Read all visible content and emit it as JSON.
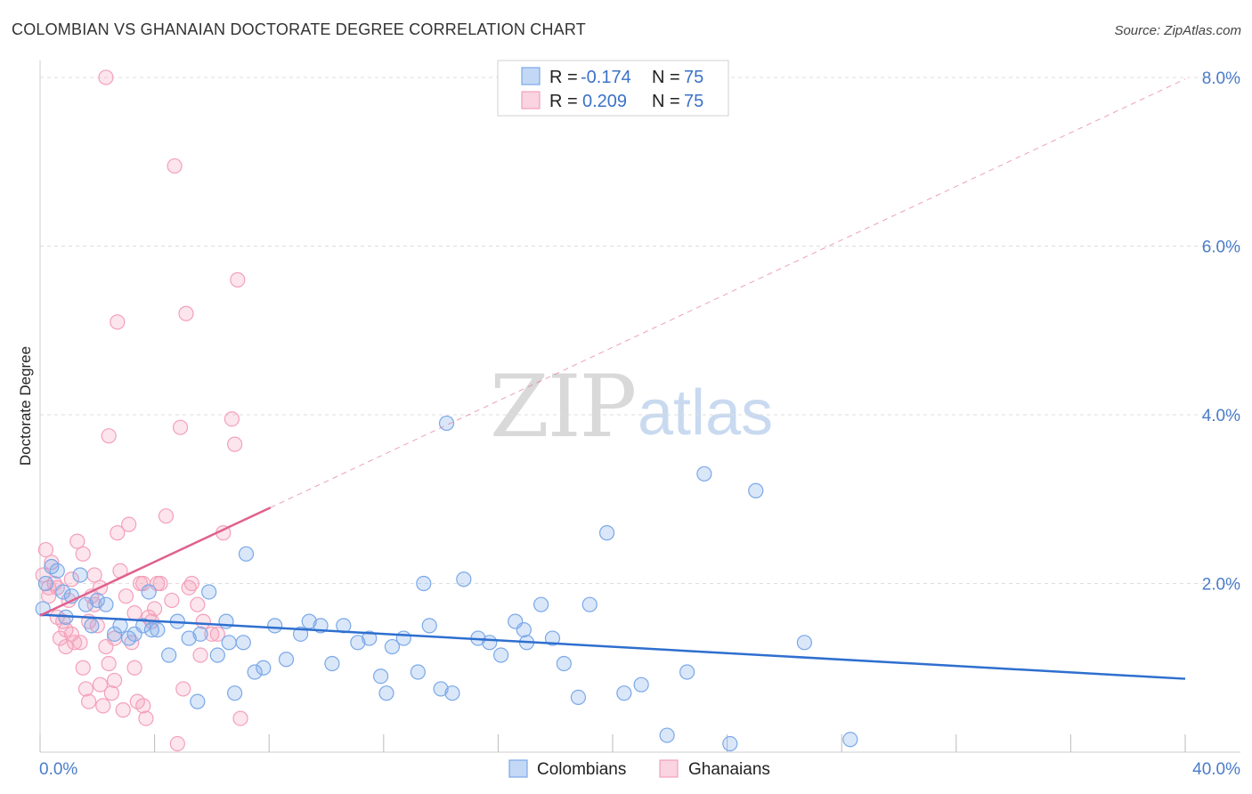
{
  "chart_data": {
    "type": "scatter",
    "title": "COLOMBIAN VS GHANAIAN DOCTORATE DEGREE CORRELATION CHART",
    "source": "Source: ZipAtlas.com",
    "ylabel": "Doctorate Degree",
    "xlabel": "",
    "xlim": [
      0,
      40
    ],
    "ylim": [
      0,
      8.2
    ],
    "x_tick_labels": [
      "0.0%",
      "40.0%"
    ],
    "y_ticks": [
      2,
      4,
      6,
      8
    ],
    "y_tick_labels": [
      "2.0%",
      "4.0%",
      "6.0%",
      "8.0%"
    ],
    "watermark": {
      "zip": "ZIP",
      "atlas": "atlas"
    },
    "legend": {
      "rows": [
        {
          "r_label": "R =",
          "r_value": "-0.174",
          "n_label": "N =",
          "n_value": "75"
        },
        {
          "r_label": "R =",
          "r_value": "0.209",
          "n_label": "N =",
          "n_value": "75"
        }
      ]
    },
    "series": [
      {
        "name": "Colombians",
        "color": "#7aa8e8",
        "line_color": "#2e6fcf",
        "trend": {
          "x": [
            0,
            40
          ],
          "y": [
            1.63,
            0.87
          ]
        },
        "points": [
          [
            0.1,
            1.7
          ],
          [
            0.2,
            2.0
          ],
          [
            0.4,
            2.2
          ],
          [
            0.6,
            2.15
          ],
          [
            0.8,
            1.9
          ],
          [
            1.1,
            1.85
          ],
          [
            1.4,
            2.1
          ],
          [
            1.8,
            1.5
          ],
          [
            2.3,
            1.75
          ],
          [
            2.6,
            1.4
          ],
          [
            2.8,
            1.5
          ],
          [
            3.1,
            1.35
          ],
          [
            3.3,
            1.4
          ],
          [
            3.6,
            1.5
          ],
          [
            3.8,
            1.9
          ],
          [
            4.1,
            1.45
          ],
          [
            4.5,
            1.15
          ],
          [
            4.8,
            1.55
          ],
          [
            5.2,
            1.35
          ],
          [
            5.6,
            1.4
          ],
          [
            5.9,
            1.9
          ],
          [
            6.2,
            1.15
          ],
          [
            6.5,
            1.55
          ],
          [
            6.8,
            0.7
          ],
          [
            7.1,
            1.3
          ],
          [
            7.5,
            0.95
          ],
          [
            7.8,
            1.0
          ],
          [
            8.2,
            1.5
          ],
          [
            8.6,
            1.1
          ],
          [
            9.1,
            1.4
          ],
          [
            9.4,
            1.55
          ],
          [
            9.8,
            1.5
          ],
          [
            10.2,
            1.05
          ],
          [
            10.6,
            1.5
          ],
          [
            11.1,
            1.3
          ],
          [
            11.5,
            1.35
          ],
          [
            11.9,
            0.9
          ],
          [
            12.3,
            1.25
          ],
          [
            12.7,
            1.35
          ],
          [
            13.2,
            0.95
          ],
          [
            13.6,
            1.5
          ],
          [
            14.0,
            0.75
          ],
          [
            14.4,
            0.7
          ],
          [
            14.8,
            2.05
          ],
          [
            15.3,
            1.35
          ],
          [
            15.7,
            1.3
          ],
          [
            16.1,
            1.15
          ],
          [
            16.6,
            1.55
          ],
          [
            17.0,
            1.3
          ],
          [
            17.5,
            1.75
          ],
          [
            17.9,
            1.35
          ],
          [
            18.3,
            1.05
          ],
          [
            18.8,
            0.65
          ],
          [
            19.2,
            1.75
          ],
          [
            19.8,
            2.6
          ],
          [
            20.4,
            0.7
          ],
          [
            21.0,
            0.8
          ],
          [
            21.9,
            0.2
          ],
          [
            22.6,
            0.95
          ],
          [
            23.2,
            3.3
          ],
          [
            24.1,
            0.1
          ],
          [
            25.0,
            3.1
          ],
          [
            26.7,
            1.3
          ],
          [
            28.3,
            0.15
          ],
          [
            13.4,
            2.0
          ],
          [
            12.1,
            0.7
          ],
          [
            5.5,
            0.6
          ],
          [
            6.6,
            1.3
          ],
          [
            2.0,
            1.8
          ],
          [
            0.9,
            1.6
          ],
          [
            1.6,
            1.75
          ],
          [
            3.9,
            1.45
          ],
          [
            7.2,
            2.35
          ],
          [
            14.2,
            3.9
          ],
          [
            16.9,
            1.45
          ]
        ]
      },
      {
        "name": "Ghanaians",
        "color": "#f4a0bb",
        "line_color": "#e0608e",
        "trend": {
          "x": [
            0,
            8.05
          ],
          "y": [
            1.62,
            2.9
          ]
        },
        "points": [
          [
            0.1,
            2.1
          ],
          [
            0.2,
            2.4
          ],
          [
            0.3,
            1.95
          ],
          [
            0.4,
            2.25
          ],
          [
            0.5,
            2.0
          ],
          [
            0.6,
            1.6
          ],
          [
            0.7,
            1.35
          ],
          [
            0.8,
            1.55
          ],
          [
            0.9,
            1.25
          ],
          [
            1.0,
            1.8
          ],
          [
            1.1,
            1.4
          ],
          [
            1.2,
            1.3
          ],
          [
            1.3,
            2.5
          ],
          [
            1.4,
            1.3
          ],
          [
            1.5,
            1.0
          ],
          [
            1.6,
            0.75
          ],
          [
            1.7,
            0.6
          ],
          [
            1.8,
            1.85
          ],
          [
            1.9,
            1.75
          ],
          [
            2.0,
            1.5
          ],
          [
            2.1,
            0.8
          ],
          [
            2.2,
            0.55
          ],
          [
            2.3,
            1.25
          ],
          [
            2.4,
            1.05
          ],
          [
            2.5,
            0.7
          ],
          [
            2.6,
            0.85
          ],
          [
            2.7,
            2.6
          ],
          [
            2.8,
            2.15
          ],
          [
            2.9,
            0.5
          ],
          [
            3.0,
            1.85
          ],
          [
            3.1,
            2.7
          ],
          [
            3.2,
            1.3
          ],
          [
            3.3,
            1.0
          ],
          [
            3.4,
            0.6
          ],
          [
            3.5,
            2.0
          ],
          [
            3.6,
            2.0
          ],
          [
            3.7,
            0.4
          ],
          [
            3.8,
            1.6
          ],
          [
            3.9,
            1.55
          ],
          [
            4.0,
            1.7
          ],
          [
            4.2,
            2.0
          ],
          [
            4.4,
            2.8
          ],
          [
            4.6,
            1.8
          ],
          [
            4.8,
            0.1
          ],
          [
            4.9,
            3.85
          ],
          [
            5.0,
            0.75
          ],
          [
            5.2,
            1.95
          ],
          [
            5.3,
            2.0
          ],
          [
            5.5,
            1.75
          ],
          [
            5.7,
            1.55
          ],
          [
            6.0,
            1.4
          ],
          [
            6.2,
            1.4
          ],
          [
            6.4,
            2.6
          ],
          [
            6.8,
            3.65
          ],
          [
            7.0,
            0.4
          ],
          [
            6.9,
            5.6
          ],
          [
            4.7,
            6.95
          ],
          [
            5.1,
            5.2
          ],
          [
            2.7,
            5.1
          ],
          [
            2.3,
            8.0
          ],
          [
            2.4,
            3.75
          ],
          [
            6.7,
            3.95
          ],
          [
            1.1,
            2.05
          ],
          [
            0.9,
            1.45
          ],
          [
            1.5,
            2.35
          ],
          [
            2.1,
            1.95
          ],
          [
            3.3,
            1.65
          ],
          [
            0.6,
            1.95
          ],
          [
            1.9,
            2.1
          ],
          [
            4.1,
            2.0
          ],
          [
            0.3,
            1.85
          ],
          [
            1.7,
            1.55
          ],
          [
            2.6,
            1.35
          ],
          [
            3.6,
            0.55
          ],
          [
            5.6,
            1.15
          ]
        ]
      }
    ]
  }
}
